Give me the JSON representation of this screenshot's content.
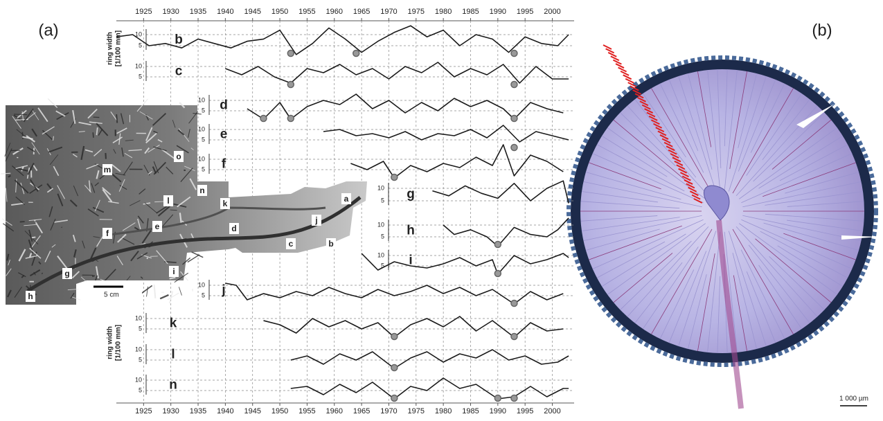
{
  "figure": {
    "panel_a_label": "(a)",
    "panel_b_label": "(b)",
    "x_ticks": [
      1925,
      1930,
      1935,
      1940,
      1945,
      1950,
      1955,
      1960,
      1965,
      1970,
      1975,
      1980,
      1985,
      1990,
      1995,
      2000
    ],
    "x_lim": [
      1920,
      2004
    ],
    "y_ticks": [
      10,
      5
    ],
    "y_axis_label": [
      "ring width",
      "[1/100 mm]"
    ],
    "series": [
      {
        "name": "b",
        "years": [
          1920,
          1923,
          1926,
          1929,
          1932,
          1935,
          1938,
          1941,
          1944,
          1947,
          1950,
          1953,
          1956,
          1959,
          1962,
          1965,
          1968,
          1971,
          1974,
          1977,
          1980,
          1983,
          1986,
          1989,
          1992,
          1995,
          1998,
          2001,
          2003
        ],
        "values": [
          9,
          10,
          5,
          6,
          4,
          8,
          6,
          4,
          7,
          8,
          12,
          1,
          6,
          13,
          8,
          2,
          7,
          11,
          14,
          9,
          12,
          5,
          10,
          8,
          2,
          9,
          6,
          5,
          10
        ],
        "marker_years": [
          1952,
          1964,
          1993
        ]
      },
      {
        "name": "c",
        "years": [
          1940,
          1943,
          1946,
          1949,
          1952,
          1955,
          1958,
          1961,
          1964,
          1967,
          1970,
          1973,
          1976,
          1979,
          1982,
          1985,
          1988,
          1991,
          1994,
          1997,
          2000,
          2003
        ],
        "values": [
          9,
          6,
          10,
          5,
          2,
          9,
          7,
          11,
          6,
          9,
          4,
          10,
          7,
          12,
          5,
          9,
          6,
          11,
          2,
          10,
          4,
          4
        ],
        "marker_years": [
          1952,
          1993
        ]
      },
      {
        "name": "d",
        "years": [
          1944,
          1947,
          1950,
          1952,
          1955,
          1958,
          1961,
          1964,
          1967,
          1970,
          1973,
          1976,
          1979,
          1982,
          1985,
          1988,
          1991,
          1993,
          1996,
          1999,
          2002
        ],
        "values": [
          6,
          1,
          9,
          1,
          7,
          10,
          8,
          13,
          6,
          10,
          4,
          9,
          5,
          11,
          7,
          10,
          6,
          1,
          9,
          6,
          4
        ],
        "marker_years": [
          1947,
          1952,
          1993
        ]
      },
      {
        "name": "e",
        "years": [
          1958,
          1961,
          1964,
          1967,
          1970,
          1973,
          1976,
          1979,
          1982,
          1985,
          1988,
          1991,
          1994,
          1997,
          2000,
          2003
        ],
        "values": [
          9,
          10,
          7,
          8,
          6,
          9,
          5,
          8,
          7,
          10,
          6,
          12,
          4,
          9,
          7,
          5
        ],
        "marker_years": [
          1993
        ]
      },
      {
        "name": "f",
        "years": [
          1963,
          1966,
          1969,
          1971,
          1974,
          1977,
          1980,
          1983,
          1986,
          1989,
          1991,
          1993,
          1996,
          1999,
          2002
        ],
        "values": [
          8,
          5,
          9,
          1,
          7,
          4,
          8,
          6,
          11,
          7,
          17,
          2,
          12,
          9,
          4
        ],
        "marker_years": [
          1971
        ]
      },
      {
        "name": "g",
        "years": [
          1978,
          1981,
          1984,
          1987,
          1990,
          1993,
          1996,
          1999,
          2002,
          2003
        ],
        "values": [
          9,
          7,
          11,
          8,
          6,
          12,
          5,
          10,
          13,
          4
        ],
        "marker_years": []
      },
      {
        "name": "h",
        "years": [
          1980,
          1982,
          1985,
          1988,
          1990,
          1993,
          1996,
          1999,
          2001,
          2003
        ],
        "values": [
          10,
          6,
          8,
          5,
          1,
          9,
          6,
          5,
          8,
          13
        ],
        "marker_years": [
          1990
        ]
      },
      {
        "name": "i",
        "years": [
          1965,
          1968,
          1971,
          1974,
          1977,
          1980,
          1983,
          1986,
          1989,
          1990,
          1993,
          1996,
          1999,
          2002,
          2003
        ],
        "values": [
          11,
          3,
          7,
          5,
          4,
          6,
          9,
          5,
          8,
          1,
          10,
          6,
          8,
          11,
          9
        ],
        "marker_years": [
          1990
        ]
      },
      {
        "name": "j",
        "years": [
          1940,
          1942,
          1944,
          1947,
          1950,
          1953,
          1956,
          1959,
          1962,
          1965,
          1968,
          1971,
          1974,
          1977,
          1980,
          1983,
          1986,
          1989,
          1993,
          1996,
          1999,
          2002
        ],
        "values": [
          11,
          10,
          3,
          6,
          4,
          7,
          5,
          9,
          6,
          4,
          8,
          5,
          7,
          10,
          6,
          9,
          5,
          8,
          1,
          7,
          3,
          6
        ],
        "marker_years": [
          1993
        ]
      },
      {
        "name": "k",
        "years": [
          1947,
          1950,
          1953,
          1956,
          1959,
          1962,
          1965,
          1968,
          1971,
          1974,
          1977,
          1980,
          1983,
          1986,
          1989,
          1993,
          1996,
          1999,
          2002
        ],
        "values": [
          9,
          7,
          3,
          10,
          6,
          9,
          5,
          8,
          1,
          7,
          10,
          6,
          11,
          4,
          9,
          1,
          8,
          4,
          5
        ],
        "marker_years": [
          1971,
          1993
        ]
      },
      {
        "name": "l",
        "years": [
          1952,
          1955,
          1958,
          1961,
          1964,
          1967,
          1971,
          1974,
          1977,
          1980,
          1983,
          1986,
          1989,
          1992,
          1995,
          1998,
          2001,
          2003
        ],
        "values": [
          5,
          7,
          3,
          8,
          5,
          9,
          1,
          6,
          9,
          4,
          8,
          6,
          10,
          5,
          7,
          3,
          4,
          7
        ],
        "marker_years": [
          1971
        ]
      },
      {
        "name": "n",
        "years": [
          1952,
          1955,
          1958,
          1961,
          1964,
          1967,
          1971,
          1974,
          1977,
          1980,
          1983,
          1986,
          1990,
          1993,
          1996,
          1999,
          2002,
          2003
        ],
        "values": [
          6,
          7,
          3,
          8,
          4,
          9,
          1,
          7,
          5,
          11,
          6,
          8,
          1,
          2,
          7,
          2,
          6,
          6
        ],
        "marker_years": [
          1971,
          1990,
          1993
        ]
      }
    ],
    "photo_labels": [
      "a",
      "b",
      "c",
      "d",
      "e",
      "f",
      "g",
      "h",
      "i",
      "j",
      "k",
      "l",
      "m",
      "n",
      "o"
    ],
    "photo_scale": "5 cm",
    "section_scale": "1 000 µm"
  }
}
